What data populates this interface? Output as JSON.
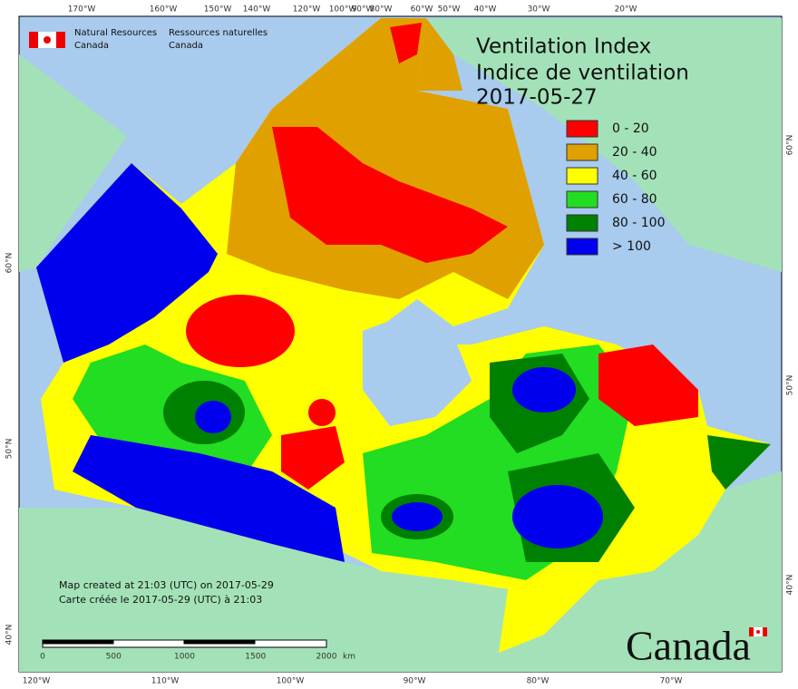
{
  "header": {
    "org_en": [
      "Natural Resources",
      "Canada"
    ],
    "org_fr": [
      "Ressources naturelles",
      "Canada"
    ]
  },
  "title": [
    "Ventilation Index",
    "Indice de ventilation"
  ],
  "date": "2017-05-27",
  "legend": [
    {
      "label": "0 - 20",
      "color": "#ff0000"
    },
    {
      "label": "20 - 40",
      "color": "#e0a000"
    },
    {
      "label": "40 - 60",
      "color": "#ffff00"
    },
    {
      "label": "60 - 80",
      "color": "#22dd22"
    },
    {
      "label": "80 - 100",
      "color": "#008000"
    },
    {
      "label": "> 100",
      "color": "#0000ee"
    }
  ],
  "graticule": {
    "top": [
      "170°W",
      "160°W",
      "150°W",
      "140°W",
      "120°W",
      "100°W",
      "90°W",
      "80°W",
      "60°W",
      "50°W",
      "40°W",
      "30°W",
      "20°W"
    ],
    "bottom": [
      "120°W",
      "110°W",
      "100°W",
      "90°W",
      "80°W",
      "70°W"
    ],
    "left": [
      "60°N",
      "50°N",
      "40°N"
    ],
    "right": [
      "60°N",
      "50°N",
      "40°N"
    ]
  },
  "credit": [
    "Map created at 21:03 (UTC) on 2017-05-29",
    "Carte créée le 2017-05-29 (UTC) à 21:03"
  ],
  "scale": {
    "ticks": [
      "0",
      "500",
      "1000",
      "1500",
      "2000"
    ],
    "unit": "km"
  },
  "wordmark": "Canada"
}
